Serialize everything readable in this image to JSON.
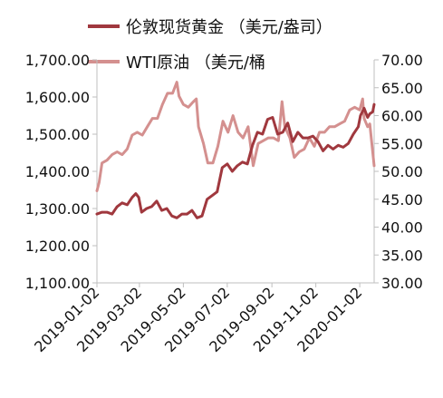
{
  "chart_data": {
    "type": "line",
    "title": "",
    "xlabel": "",
    "x_tick_labels": [
      "2019-01-02",
      "2019-03-02",
      "2019-05-02",
      "2019-07-02",
      "2019-09-02",
      "2019-11-02",
      "2020-01-02"
    ],
    "y_left": {
      "tick_labels": [
        "1,100.00",
        "1,200.00",
        "1,300.00",
        "1,400.00",
        "1,500.00",
        "1,600.00",
        "1,700.00"
      ],
      "ylim": [
        1100,
        1700
      ]
    },
    "y_right": {
      "tick_labels": [
        "30.00",
        "35.00",
        "40.00",
        "45.00",
        "50.00",
        "55.00",
        "60.00",
        "65.00",
        "70.00"
      ],
      "ylim": [
        30,
        70
      ]
    },
    "xlim": [
      "2019-01-02",
      "2020-01-22"
    ],
    "legend_placement": "top",
    "grid": false,
    "series": [
      {
        "name": "伦敦现货黄金 （美元/盎司）",
        "axis": "left",
        "color": "#a0383e",
        "points": [
          [
            "2019-01-02",
            1285
          ],
          [
            "2019-01-09",
            1290
          ],
          [
            "2019-01-16",
            1290
          ],
          [
            "2019-01-23",
            1285
          ],
          [
            "2019-01-30",
            1305
          ],
          [
            "2019-02-06",
            1315
          ],
          [
            "2019-02-13",
            1310
          ],
          [
            "2019-02-20",
            1330
          ],
          [
            "2019-02-25",
            1340
          ],
          [
            "2019-03-01",
            1330
          ],
          [
            "2019-03-05",
            1290
          ],
          [
            "2019-03-12",
            1300
          ],
          [
            "2019-03-19",
            1305
          ],
          [
            "2019-03-26",
            1320
          ],
          [
            "2019-04-02",
            1295
          ],
          [
            "2019-04-09",
            1300
          ],
          [
            "2019-04-16",
            1280
          ],
          [
            "2019-04-23",
            1275
          ],
          [
            "2019-04-30",
            1285
          ],
          [
            "2019-05-07",
            1285
          ],
          [
            "2019-05-14",
            1295
          ],
          [
            "2019-05-21",
            1275
          ],
          [
            "2019-05-28",
            1280
          ],
          [
            "2019-06-04",
            1325
          ],
          [
            "2019-06-11",
            1335
          ],
          [
            "2019-06-18",
            1345
          ],
          [
            "2019-06-25",
            1410
          ],
          [
            "2019-07-02",
            1420
          ],
          [
            "2019-07-09",
            1400
          ],
          [
            "2019-07-16",
            1415
          ],
          [
            "2019-07-23",
            1425
          ],
          [
            "2019-07-30",
            1420
          ],
          [
            "2019-08-06",
            1470
          ],
          [
            "2019-08-13",
            1505
          ],
          [
            "2019-08-20",
            1500
          ],
          [
            "2019-08-27",
            1540
          ],
          [
            "2019-09-03",
            1545
          ],
          [
            "2019-09-10",
            1500
          ],
          [
            "2019-09-17",
            1505
          ],
          [
            "2019-09-24",
            1530
          ],
          [
            "2019-10-01",
            1480
          ],
          [
            "2019-10-08",
            1505
          ],
          [
            "2019-10-15",
            1490
          ],
          [
            "2019-10-22",
            1490
          ],
          [
            "2019-10-29",
            1495
          ],
          [
            "2019-11-05",
            1480
          ],
          [
            "2019-11-12",
            1455
          ],
          [
            "2019-11-19",
            1470
          ],
          [
            "2019-11-26",
            1460
          ],
          [
            "2019-12-03",
            1470
          ],
          [
            "2019-12-10",
            1465
          ],
          [
            "2019-12-17",
            1475
          ],
          [
            "2019-12-24",
            1500
          ],
          [
            "2019-12-31",
            1520
          ],
          [
            "2020-01-03",
            1550
          ],
          [
            "2020-01-08",
            1570
          ],
          [
            "2020-01-13",
            1545
          ],
          [
            "2020-01-16",
            1555
          ],
          [
            "2020-01-20",
            1560
          ],
          [
            "2020-01-22",
            1580
          ]
        ]
      },
      {
        "name": "WTI原油 （美元/桶",
        "axis": "right",
        "color": "#d4908f",
        "points": [
          [
            "2019-01-02",
            46.5
          ],
          [
            "2019-01-05",
            48.0
          ],
          [
            "2019-01-09",
            51.5
          ],
          [
            "2019-01-16",
            52.0
          ],
          [
            "2019-01-23",
            53.0
          ],
          [
            "2019-01-30",
            53.5
          ],
          [
            "2019-02-06",
            53.0
          ],
          [
            "2019-02-13",
            54.0
          ],
          [
            "2019-02-20",
            56.5
          ],
          [
            "2019-02-27",
            57.0
          ],
          [
            "2019-03-06",
            56.5
          ],
          [
            "2019-03-13",
            58.0
          ],
          [
            "2019-03-20",
            59.5
          ],
          [
            "2019-03-27",
            59.5
          ],
          [
            "2019-04-03",
            62.0
          ],
          [
            "2019-04-10",
            64.0
          ],
          [
            "2019-04-17",
            64.0
          ],
          [
            "2019-04-23",
            66.0
          ],
          [
            "2019-04-26",
            63.5
          ],
          [
            "2019-05-02",
            62.0
          ],
          [
            "2019-05-09",
            61.5
          ],
          [
            "2019-05-16",
            62.5
          ],
          [
            "2019-05-20",
            63.0
          ],
          [
            "2019-05-23",
            58.0
          ],
          [
            "2019-05-30",
            55.0
          ],
          [
            "2019-06-05",
            51.5
          ],
          [
            "2019-06-12",
            51.5
          ],
          [
            "2019-06-19",
            54.5
          ],
          [
            "2019-06-26",
            59.0
          ],
          [
            "2019-07-03",
            57.0
          ],
          [
            "2019-07-10",
            60.0
          ],
          [
            "2019-07-17",
            57.0
          ],
          [
            "2019-07-24",
            56.0
          ],
          [
            "2019-07-31",
            58.0
          ],
          [
            "2019-08-07",
            51.0
          ],
          [
            "2019-08-14",
            55.0
          ],
          [
            "2019-08-21",
            55.5
          ],
          [
            "2019-08-28",
            56.0
          ],
          [
            "2019-09-04",
            56.0
          ],
          [
            "2019-09-11",
            55.5
          ],
          [
            "2019-09-16",
            62.5
          ],
          [
            "2019-09-20",
            58.0
          ],
          [
            "2019-09-27",
            56.0
          ],
          [
            "2019-10-03",
            52.5
          ],
          [
            "2019-10-10",
            53.5
          ],
          [
            "2019-10-17",
            54.0
          ],
          [
            "2019-10-24",
            56.0
          ],
          [
            "2019-10-31",
            54.5
          ],
          [
            "2019-11-07",
            57.0
          ],
          [
            "2019-11-14",
            57.0
          ],
          [
            "2019-11-21",
            58.0
          ],
          [
            "2019-11-28",
            58.0
          ],
          [
            "2019-12-05",
            58.5
          ],
          [
            "2019-12-12",
            59.0
          ],
          [
            "2019-12-19",
            61.0
          ],
          [
            "2019-12-26",
            61.5
          ],
          [
            "2020-01-02",
            61.0
          ],
          [
            "2020-01-06",
            63.0
          ],
          [
            "2020-01-08",
            59.5
          ],
          [
            "2020-01-13",
            58.0
          ],
          [
            "2020-01-16",
            58.5
          ],
          [
            "2020-01-20",
            53.5
          ],
          [
            "2020-01-22",
            51.0
          ]
        ]
      }
    ]
  }
}
